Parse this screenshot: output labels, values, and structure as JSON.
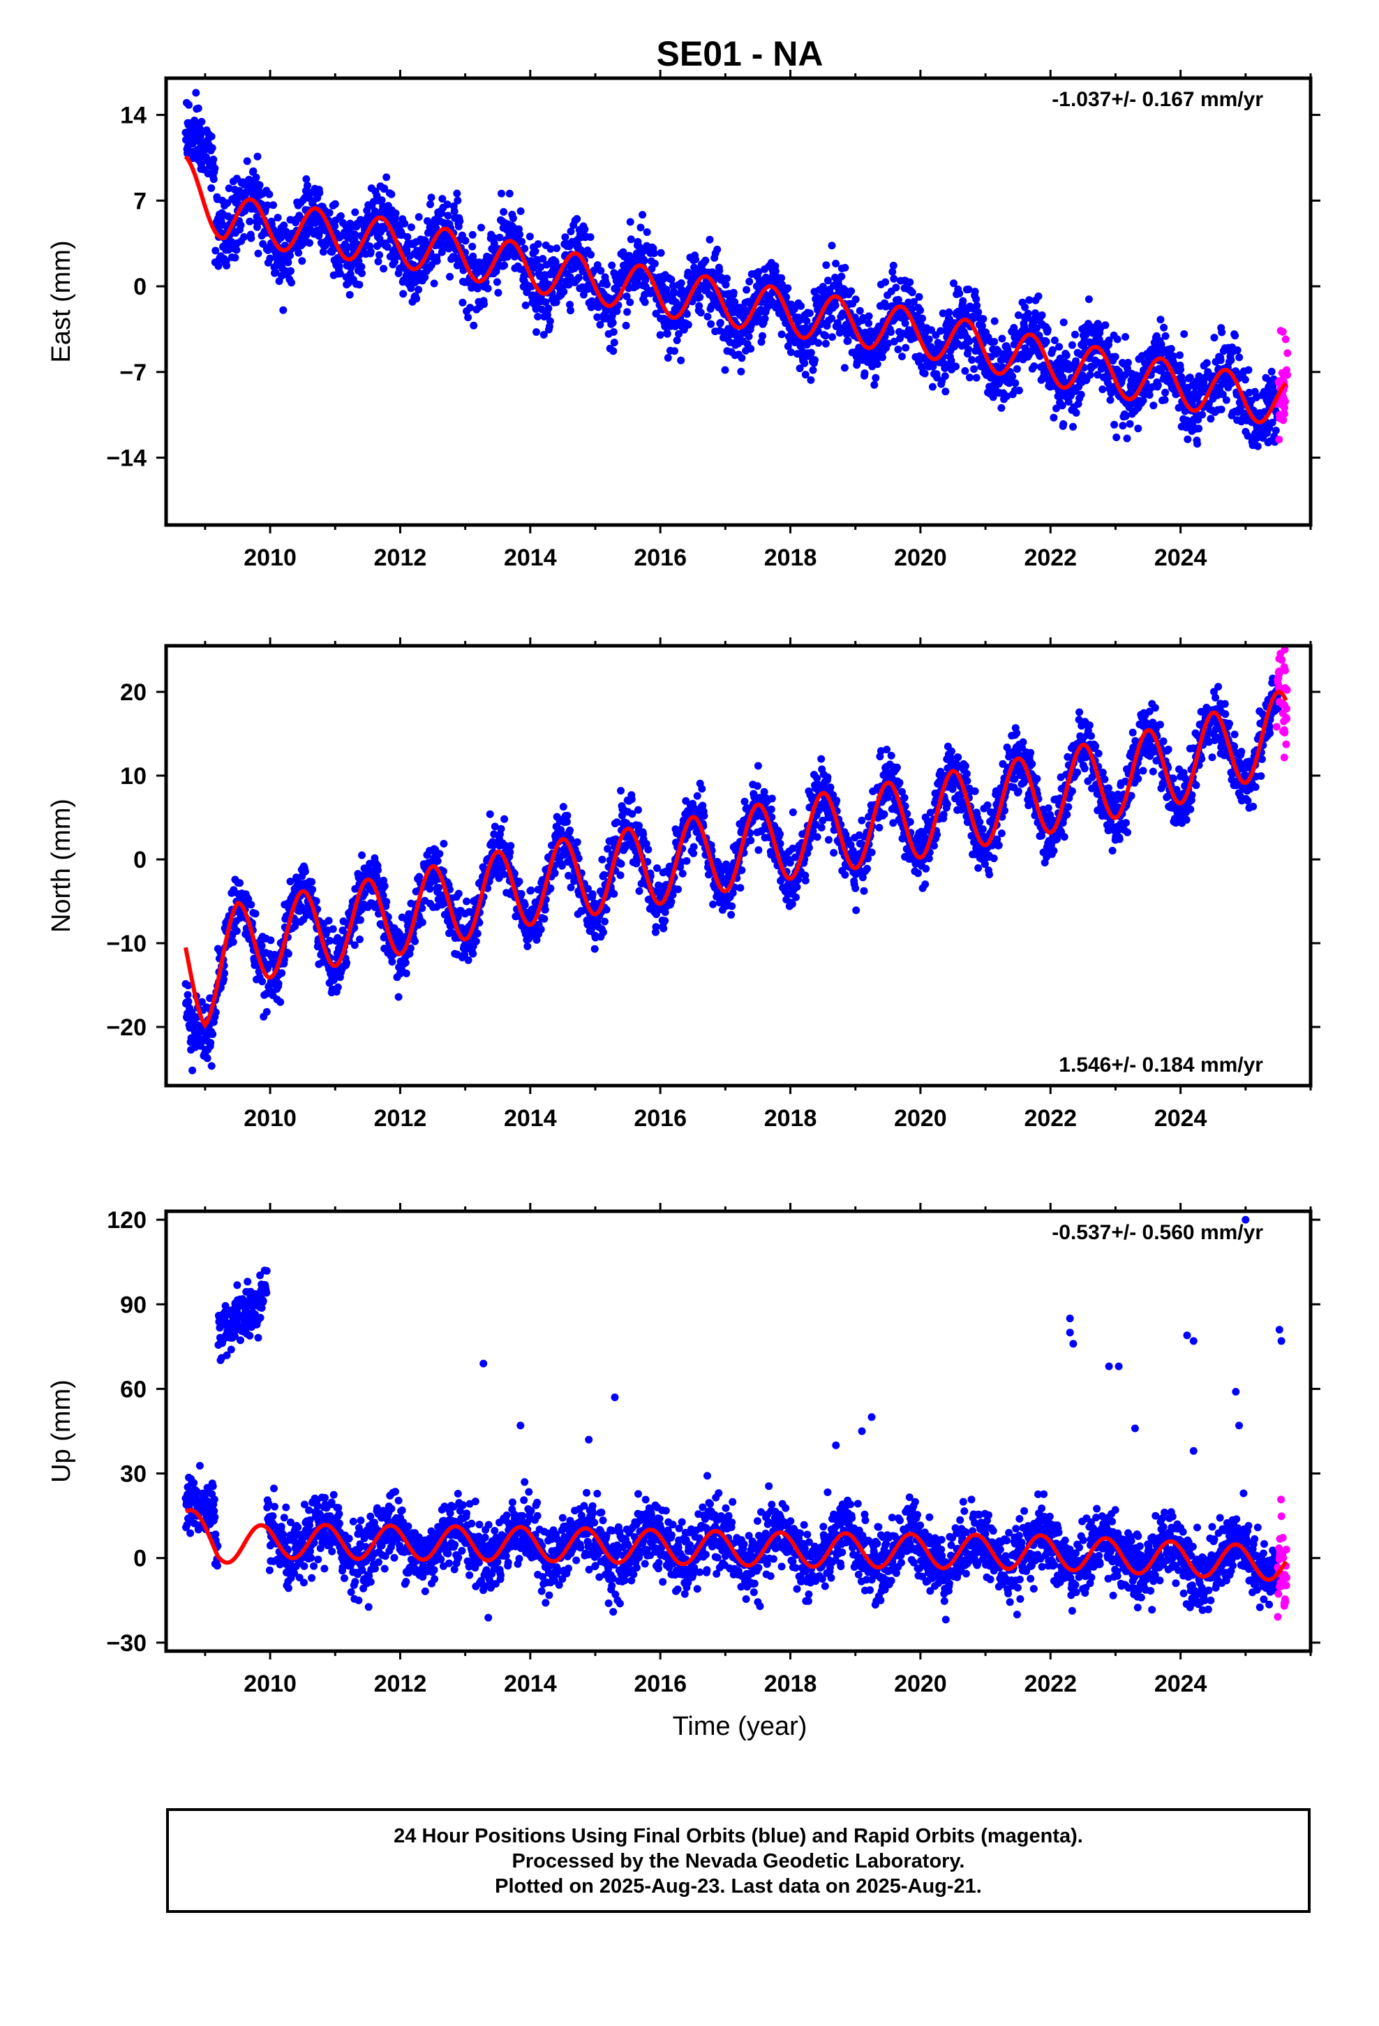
{
  "title": "SE01 - NA",
  "xlabel": "Time (year)",
  "footer": {
    "line1": "24 Hour Positions Using Final Orbits (blue) and Rapid Orbits (magenta).",
    "line2": "Processed by the Nevada Geodetic Laboratory.",
    "line3": "Plotted on 2025-Aug-23. Last data on 2025-Aug-21."
  },
  "colors": {
    "final_orbits": "#0000ff",
    "rapid_orbits": "#ff00ff",
    "model": "#ff0000",
    "axes": "#000000"
  },
  "chart_data": [
    {
      "type": "scatter",
      "ylabel": "East (mm)",
      "rate_label": "-1.037+/- 0.167 mm/yr",
      "rate_position": "top-right",
      "xlim": [
        2008.4,
        2026.0
      ],
      "ylim": [
        -19.5,
        17.0
      ],
      "x_ticks": [
        2010,
        2012,
        2014,
        2016,
        2018,
        2020,
        2022,
        2024
      ],
      "y_ticks": [
        14,
        7,
        0,
        -7,
        -14
      ],
      "y_tick_labels": [
        "14",
        "7",
        "0",
        "−7",
        "−14"
      ],
      "data_start": 2008.7,
      "data_end": 2025.63,
      "rapid_start": 2025.5,
      "rate_mm_per_yr": -1.037,
      "model_anchors": [
        [
          2008.7,
          8.7
        ],
        [
          2009.3,
          5.5
        ],
        [
          2012.0,
          3.5
        ],
        [
          2016.0,
          -0.5
        ],
        [
          2020.0,
          -3.8
        ],
        [
          2022.0,
          -6.2
        ],
        [
          2025.63,
          -9.6
        ]
      ],
      "seasonal_amplitude": 1.9,
      "seasonal_peak_phase": 0.7,
      "scatter_sd": 1.5,
      "early_cluster": {
        "start": 2008.7,
        "end": 2009.15,
        "values": [
          13.0,
          10.0
        ],
        "sd": 1.3
      },
      "series": [
        {
          "name": "Final Orbits (blue)",
          "color": "#0000ff"
        },
        {
          "name": "Rapid Orbits (magenta)",
          "color": "#ff00ff"
        },
        {
          "name": "Model fit",
          "color": "#ff0000"
        }
      ]
    },
    {
      "type": "scatter",
      "ylabel": "North (mm)",
      "rate_label": "1.546+/- 0.184 mm/yr",
      "rate_position": "bottom-right",
      "xlim": [
        2008.4,
        2026.0
      ],
      "ylim": [
        -27.0,
        25.5
      ],
      "x_ticks": [
        2010,
        2012,
        2014,
        2016,
        2018,
        2020,
        2022,
        2024
      ],
      "y_ticks": [
        20,
        10,
        0,
        -10,
        -20
      ],
      "y_tick_labels": [
        "20",
        "10",
        "0",
        "−10",
        "−20"
      ],
      "data_start": 2008.7,
      "data_end": 2025.63,
      "rapid_start": 2025.5,
      "rate_mm_per_yr": 1.546,
      "model_anchors": [
        [
          2008.7,
          -12.0
        ],
        [
          2009.0,
          -15.0
        ],
        [
          2009.5,
          -10.0
        ],
        [
          2012.0,
          -6.5
        ],
        [
          2014.0,
          -3.0
        ],
        [
          2016.0,
          -0.5
        ],
        [
          2018.0,
          2.5
        ],
        [
          2020.0,
          5.0
        ],
        [
          2022.0,
          8.0
        ],
        [
          2024.0,
          11.5
        ],
        [
          2025.63,
          15.5
        ]
      ],
      "seasonal_amplitude": 4.8,
      "seasonal_peak_phase": 0.5,
      "scatter_sd": 1.8,
      "early_cluster": {
        "start": 2008.7,
        "end": 2009.1,
        "values": [
          -18.0,
          -22.0
        ],
        "sd": 2.0
      },
      "series": [
        {
          "name": "Final Orbits (blue)",
          "color": "#0000ff"
        },
        {
          "name": "Rapid Orbits (magenta)",
          "color": "#ff00ff"
        },
        {
          "name": "Model fit",
          "color": "#ff0000"
        }
      ]
    },
    {
      "type": "scatter",
      "ylabel": "Up (mm)",
      "rate_label": "-0.537+/- 0.560 mm/yr",
      "rate_position": "top-right",
      "xlim": [
        2008.4,
        2026.0
      ],
      "ylim": [
        -33.0,
        123.0
      ],
      "x_ticks": [
        2010,
        2012,
        2014,
        2016,
        2018,
        2020,
        2022,
        2024
      ],
      "y_ticks": [
        120,
        90,
        60,
        30,
        0,
        -30
      ],
      "y_tick_labels": [
        "120",
        "90",
        "60",
        "30",
        "0",
        "−30"
      ],
      "data_start": 2008.7,
      "data_end": 2025.63,
      "rapid_start": 2025.5,
      "rate_mm_per_yr": -0.537,
      "model_anchors": [
        [
          2008.7,
          13.0
        ],
        [
          2009.2,
          4.0
        ],
        [
          2010.0,
          6.0
        ],
        [
          2014.0,
          5.0
        ],
        [
          2018.0,
          3.0
        ],
        [
          2022.0,
          2.0
        ],
        [
          2025.63,
          -2.0
        ]
      ],
      "seasonal_amplitude": 6.0,
      "seasonal_peak_phase": 0.85,
      "scatter_sd": 6.0,
      "early_cluster": {
        "start": 2008.7,
        "end": 2009.15,
        "values": [
          20.0,
          15.0
        ],
        "sd": 5.0
      },
      "anomaly_cluster": {
        "start": 2009.2,
        "end": 2009.95,
        "values": [
          80.0,
          92.0
        ],
        "sd": 5.0
      },
      "outliers": [
        [
          2013.28,
          69
        ],
        [
          2013.85,
          47
        ],
        [
          2015.3,
          57
        ],
        [
          2014.9,
          42
        ],
        [
          2018.7,
          40
        ],
        [
          2019.25,
          50
        ],
        [
          2019.1,
          45
        ],
        [
          2022.3,
          85
        ],
        [
          2022.3,
          80
        ],
        [
          2022.35,
          76
        ],
        [
          2022.9,
          68
        ],
        [
          2023.05,
          68
        ],
        [
          2023.3,
          46
        ],
        [
          2024.1,
          79
        ],
        [
          2024.2,
          77
        ],
        [
          2024.2,
          38
        ],
        [
          2024.85,
          59
        ],
        [
          2024.9,
          47
        ],
        [
          2025.52,
          81
        ],
        [
          2025.55,
          77
        ],
        [
          2025.0,
          120
        ]
      ],
      "series": [
        {
          "name": "Final Orbits (blue)",
          "color": "#0000ff"
        },
        {
          "name": "Rapid Orbits (magenta)",
          "color": "#ff00ff"
        },
        {
          "name": "Model fit",
          "color": "#ff0000"
        }
      ]
    }
  ]
}
